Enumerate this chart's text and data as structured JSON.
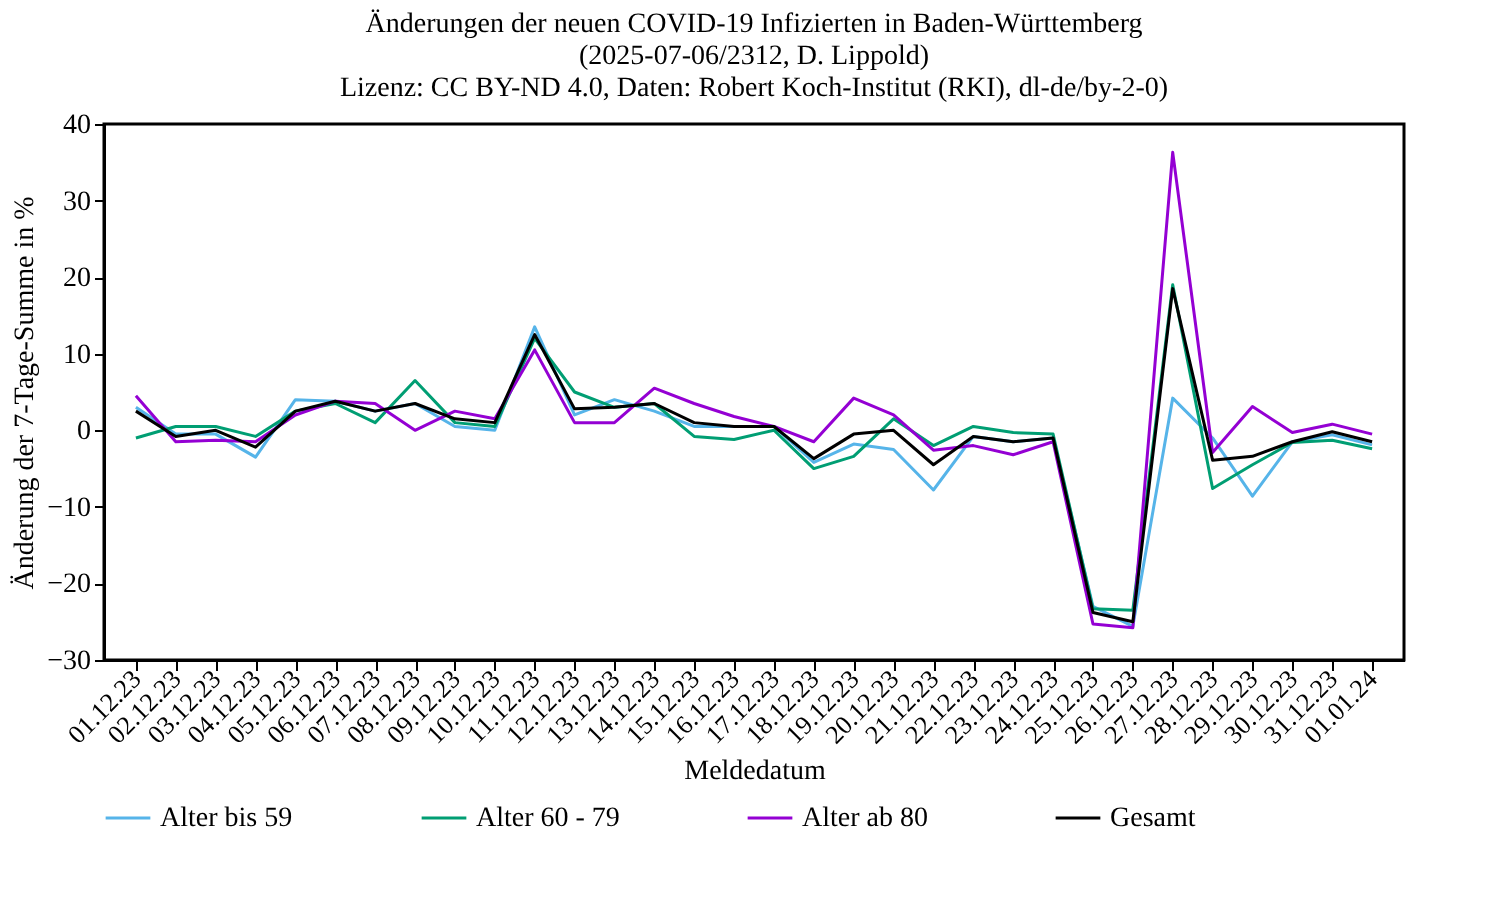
{
  "chart_data": {
    "type": "line",
    "title": [
      "Änderungen der neuen COVID-19 Infizierten in Baden-Württemberg",
      "(2025-07-06/2312, D. Lippold)",
      "Lizenz: CC BY-ND 4.0, Daten: Robert Koch-Institut (RKI), dl-de/by-2-0)"
    ],
    "xlabel": "Meldedatum",
    "ylabel": "Änderung der 7-Tage-Summe in %",
    "categories": [
      "01.12.23",
      "02.12.23",
      "03.12.23",
      "04.12.23",
      "05.12.23",
      "06.12.23",
      "07.12.23",
      "08.12.23",
      "09.12.23",
      "10.12.23",
      "11.12.23",
      "12.12.23",
      "13.12.23",
      "14.12.23",
      "15.12.23",
      "16.12.23",
      "17.12.23",
      "18.12.23",
      "19.12.23",
      "20.12.23",
      "21.12.23",
      "22.12.23",
      "23.12.23",
      "24.12.23",
      "25.12.23",
      "26.12.23",
      "27.12.23",
      "28.12.23",
      "29.12.23",
      "30.12.23",
      "31.12.23",
      "01.01.24"
    ],
    "series": [
      {
        "name": "Alter bis 59",
        "color": "#56b4e9",
        "values": [
          3,
          -0.5,
          -0.5,
          -3.5,
          4,
          3.8,
          2.5,
          3.5,
          0.5,
          0,
          13.5,
          2,
          4,
          2.5,
          0.5,
          0.5,
          0.5,
          -4.2,
          -1.8,
          -2.5,
          -7.8,
          -0.8,
          -1.5,
          -1,
          -23,
          -25.6,
          4.2,
          -1,
          -8.6,
          -1.5,
          -0.6,
          -1.9
        ]
      },
      {
        "name": "Alter 60 - 79",
        "color": "#009e73",
        "values": [
          -1,
          0.5,
          0.5,
          -0.8,
          2.5,
          3.5,
          1,
          6.5,
          1,
          0.5,
          12,
          5,
          3,
          3.5,
          -0.8,
          -1.2,
          0,
          -5,
          -3.4,
          1.5,
          -2,
          0.5,
          -0.3,
          -0.5,
          -23.3,
          -23.5,
          19,
          -7.6,
          -4.5,
          -1.6,
          -1.3,
          -2.4
        ]
      },
      {
        "name": "Alter ab 80",
        "color": "#9400d3",
        "values": [
          4.5,
          -1.5,
          -1.3,
          -1.5,
          2,
          3.8,
          3.5,
          0,
          2.5,
          1.5,
          10.5,
          1,
          1,
          5.5,
          3.5,
          1.8,
          0.5,
          -1.5,
          4.2,
          2,
          -2.6,
          -2,
          -3.2,
          -1.5,
          -25.3,
          -25.8,
          36.3,
          -2.9,
          3.1,
          -0.3,
          0.8,
          -0.5
        ]
      },
      {
        "name": "Gesamt",
        "color": "#000000",
        "values": [
          2.5,
          -0.8,
          0,
          -2.2,
          2.5,
          3.8,
          2.5,
          3.5,
          1.5,
          1,
          12.5,
          2.8,
          3,
          3.5,
          1,
          0.5,
          0.5,
          -3.7,
          -0.5,
          0,
          -4.5,
          -0.8,
          -1.5,
          -1,
          -23.8,
          -25,
          18.5,
          -3.9,
          -3.4,
          -1.5,
          -0.2,
          -1.5
        ]
      }
    ],
    "ylim": [
      -30,
      40
    ],
    "yticks": [
      -30,
      -20,
      -10,
      0,
      10,
      20,
      30,
      40
    ],
    "grid": false,
    "legend": "bottom",
    "marker": "none",
    "line_style": "solid"
  }
}
